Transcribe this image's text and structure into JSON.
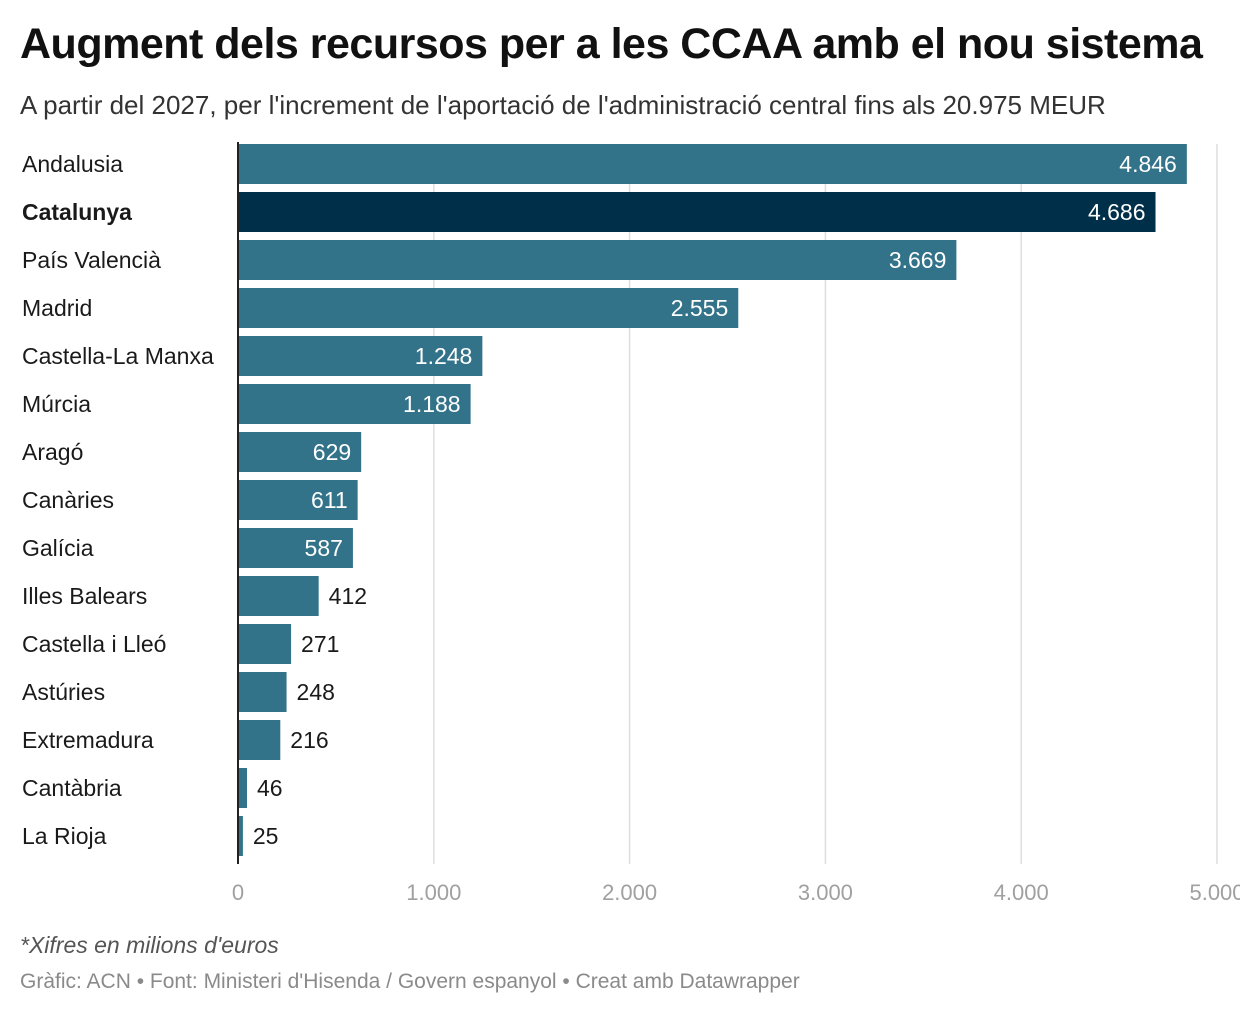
{
  "header": {
    "title": "Augment dels recursos per a les CCAA amb el nou sistema",
    "subtitle": "A partir del 2027, per l'increment de l'aportació de l'administració central fins als 20.975 MEUR"
  },
  "footer": {
    "note": "*Xifres en milions d'euros",
    "source": "Gràfic: ACN • Font: Ministeri d'Hisenda / Govern espanyol • Creat amb Datawrapper"
  },
  "colors": {
    "bar": "#33738a",
    "highlight": "#003049",
    "grid": "#dedede",
    "axis_text": "#a0a0a0"
  },
  "chart_data": {
    "type": "bar",
    "orientation": "horizontal",
    "categories": [
      "Andalusia",
      "Catalunya",
      "País Valencià",
      "Madrid",
      "Castella-La Manxa",
      "Múrcia",
      "Aragó",
      "Canàries",
      "Galícia",
      "Illes Balears",
      "Castella i Lleó",
      "Astúries",
      "Extremadura",
      "Cantàbria",
      "La Rioja"
    ],
    "values": [
      4846,
      4686,
      3669,
      2555,
      1248,
      1188,
      629,
      611,
      587,
      412,
      271,
      248,
      216,
      46,
      25
    ],
    "value_labels": [
      "4.846",
      "4.686",
      "3.669",
      "2.555",
      "1.248",
      "1.188",
      "629",
      "611",
      "587",
      "412",
      "271",
      "248",
      "216",
      "46",
      "25"
    ],
    "highlight": "Catalunya",
    "xlim": [
      0,
      5000
    ],
    "ticks": [
      0,
      1000,
      2000,
      3000,
      4000,
      5000
    ],
    "tick_labels": [
      "0",
      "1.000",
      "2.000",
      "3.000",
      "4.000",
      "5.000"
    ],
    "grid": true
  }
}
